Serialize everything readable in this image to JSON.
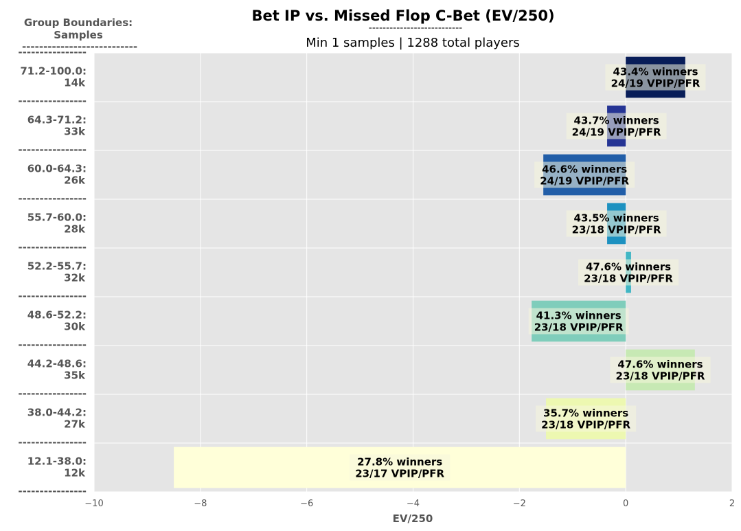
{
  "chart_data": {
    "type": "bar",
    "orientation": "horizontal",
    "title": "Bet IP vs. Missed Flop C-Bet (EV/250)",
    "title_underline": "---------------------------",
    "subtitle": "Min 1 samples | 1288 total players",
    "ylabel": "Group Boundaries:\nSamples",
    "ylabel_underline": "---------------------------",
    "xlabel": "EV/250",
    "xlim": [
      -10,
      2
    ],
    "xticks": [
      "−10",
      "−8",
      "−6",
      "−4",
      "−2",
      "0",
      "2"
    ],
    "xtick_values": [
      -10,
      -8,
      -6,
      -4,
      -2,
      0,
      2
    ],
    "grid": true,
    "group_separator": "----------------",
    "categories": [
      {
        "range": "71.2-100.0:",
        "samples": "14k"
      },
      {
        "range": "64.3-71.2:",
        "samples": "33k"
      },
      {
        "range": "60.0-64.3:",
        "samples": "26k"
      },
      {
        "range": "55.7-60.0:",
        "samples": "28k"
      },
      {
        "range": "52.2-55.7:",
        "samples": "32k"
      },
      {
        "range": "48.6-52.2:",
        "samples": "30k"
      },
      {
        "range": "44.2-48.6:",
        "samples": "35k"
      },
      {
        "range": "38.0-44.2:",
        "samples": "27k"
      },
      {
        "range": "12.1-38.0:",
        "samples": "12k"
      }
    ],
    "values": [
      1.12,
      -0.35,
      -1.55,
      -0.35,
      0.1,
      -1.77,
      1.3,
      -1.5,
      -8.5
    ],
    "colors": [
      "#081d58",
      "#253494",
      "#225ea8",
      "#1d91c0",
      "#41b6c4",
      "#7fcdbb",
      "#c7e9b4",
      "#edf8b1",
      "#ffffd9"
    ],
    "annotations": [
      {
        "line1": "43.4% winners",
        "line2": "24/19 VPIP/PFR"
      },
      {
        "line1": "43.7% winners",
        "line2": "24/19 VPIP/PFR"
      },
      {
        "line1": "46.6% winners",
        "line2": "24/19 VPIP/PFR"
      },
      {
        "line1": "43.5% winners",
        "line2": "23/18 VPIP/PFR"
      },
      {
        "line1": "47.6% winners",
        "line2": "23/18 VPIP/PFR"
      },
      {
        "line1": "41.3% winners",
        "line2": "23/18 VPIP/PFR"
      },
      {
        "line1": "47.6% winners",
        "line2": "23/18 VPIP/PFR"
      },
      {
        "line1": "35.7% winners",
        "line2": "23/18 VPIP/PFR"
      },
      {
        "line1": "27.8% winners",
        "line2": "23/17 VPIP/PFR"
      }
    ]
  }
}
